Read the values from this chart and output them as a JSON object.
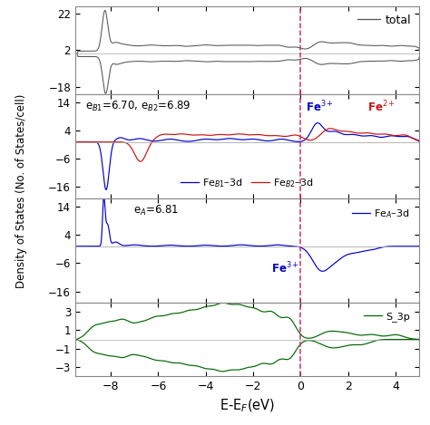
{
  "xlim": [
    -9.5,
    5.0
  ],
  "xlabel": "E-E$_F$(eV)",
  "ylabel": "Density of States (No. of States/cell)",
  "vline_color": "#cc3366",
  "panel1": {
    "ylim": [
      -22,
      26
    ],
    "yticks": [
      -18,
      2,
      22
    ],
    "color": "#555555",
    "label": "total"
  },
  "panel2": {
    "ylim": [
      -20,
      17
    ],
    "yticks": [
      -16,
      -6,
      4,
      14
    ],
    "color_blue": "#0000cc",
    "color_red": "#cc1111",
    "label_blue": "Fe$_{B1}$–3d",
    "label_red": "Fe$_{B2}$–3d",
    "text": "e$_{B1}$=6.70, e$_{B2}$=6.89",
    "ann_blue": "Fe$^{3+}$",
    "ann_red": "Fe$^{2+}$"
  },
  "panel3": {
    "ylim": [
      -20,
      17
    ],
    "yticks": [
      -16,
      -6,
      4,
      14
    ],
    "color_blue": "#0000cc",
    "label_blue": "Fe$_A$–3d",
    "text": "e$_A$=6.81",
    "ann_blue": "Fe$^{3+}$"
  },
  "panel4": {
    "ylim": [
      -4,
      4
    ],
    "yticks": [
      -3,
      -1,
      1,
      3
    ],
    "color": "#006600",
    "label": "S_3p"
  },
  "bg_color": "#ffffff"
}
